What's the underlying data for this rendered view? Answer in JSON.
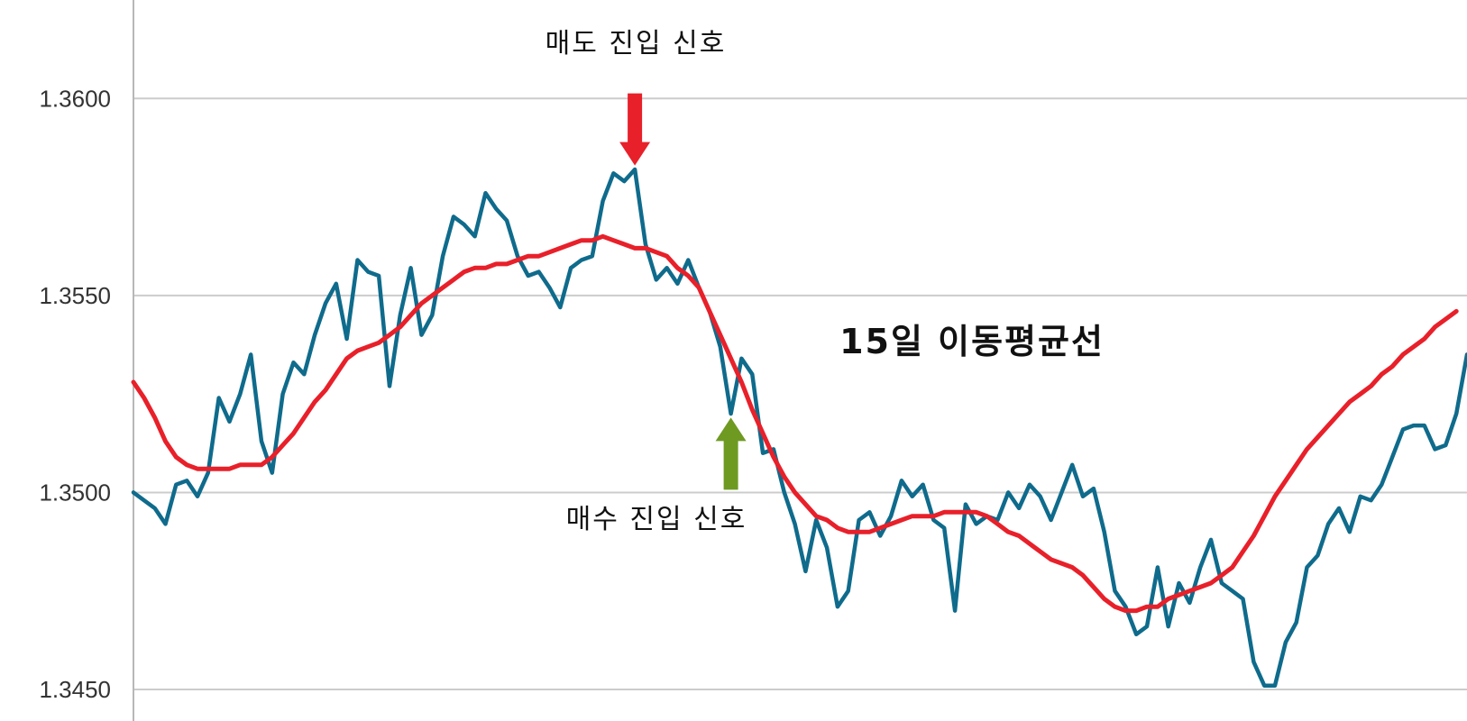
{
  "chart_data": {
    "type": "line",
    "title": "",
    "xlabel": "",
    "ylabel": "",
    "ylim": [
      1.3442,
      1.3625
    ],
    "yticks": [
      1.36,
      1.355,
      1.35,
      1.345
    ],
    "ytick_labels": [
      "1.3600",
      "1.3550",
      "1.3500",
      "1.3450"
    ],
    "grid": true,
    "series": [
      {
        "key": "price",
        "color": "#0f6b8c",
        "values": [
          1.35,
          1.3498,
          1.3496,
          1.3492,
          1.3502,
          1.3503,
          1.3499,
          1.3505,
          1.3524,
          1.3518,
          1.3525,
          1.3535,
          1.3513,
          1.3505,
          1.3525,
          1.3533,
          1.353,
          1.354,
          1.3548,
          1.3553,
          1.3539,
          1.3559,
          1.3556,
          1.3555,
          1.3527,
          1.3545,
          1.3557,
          1.354,
          1.3545,
          1.356,
          1.357,
          1.3568,
          1.3565,
          1.3576,
          1.3572,
          1.3569,
          1.356,
          1.3555,
          1.3556,
          1.3552,
          1.3547,
          1.3557,
          1.3559,
          1.356,
          1.3574,
          1.3581,
          1.3579,
          1.3582,
          1.3563,
          1.3554,
          1.3557,
          1.3553,
          1.3559,
          1.3552,
          1.3546,
          1.3537,
          1.352,
          1.3534,
          1.353,
          1.351,
          1.3511,
          1.35,
          1.3492,
          1.348,
          1.3493,
          1.3486,
          1.3471,
          1.3475,
          1.3493,
          1.3495,
          1.3489,
          1.3494,
          1.3503,
          1.3499,
          1.3502,
          1.3493,
          1.3491,
          1.347,
          1.3497,
          1.3492,
          1.3494,
          1.3493,
          1.35,
          1.3496,
          1.3502,
          1.3499,
          1.3493,
          1.35,
          1.3507,
          1.3499,
          1.3501,
          1.349,
          1.3475,
          1.3471,
          1.3464,
          1.3466,
          1.3481,
          1.3466,
          1.3477,
          1.3472,
          1.3481,
          1.3488,
          1.3477,
          1.3475,
          1.3473,
          1.3457,
          1.3451,
          1.3451,
          1.3462,
          1.3467,
          1.3481,
          1.3484,
          1.3492,
          1.3496,
          1.349,
          1.3499,
          1.3498,
          1.3502,
          1.3509,
          1.3516,
          1.3517,
          1.3517,
          1.3511,
          1.3512,
          1.352,
          1.3535
        ]
      },
      {
        "key": "ma15",
        "name": "15일 이동평균선",
        "color": "#e8202a",
        "values": [
          1.3528,
          1.3524,
          1.3519,
          1.3513,
          1.3509,
          1.3507,
          1.3506,
          1.3506,
          1.3506,
          1.3506,
          1.3507,
          1.3507,
          1.3507,
          1.3509,
          1.3512,
          1.3515,
          1.3519,
          1.3523,
          1.3526,
          1.353,
          1.3534,
          1.3536,
          1.3537,
          1.3538,
          1.354,
          1.3542,
          1.3545,
          1.3548,
          1.355,
          1.3552,
          1.3554,
          1.3556,
          1.3557,
          1.3557,
          1.3558,
          1.3558,
          1.3559,
          1.356,
          1.356,
          1.3561,
          1.3562,
          1.3563,
          1.3564,
          1.3564,
          1.3565,
          1.3564,
          1.3563,
          1.3562,
          1.3562,
          1.3561,
          1.356,
          1.3557,
          1.3555,
          1.3552,
          1.3546,
          1.354,
          1.3534,
          1.3528,
          1.3521,
          1.3515,
          1.3509,
          1.3504,
          1.35,
          1.3497,
          1.3494,
          1.3493,
          1.3491,
          1.349,
          1.349,
          1.349,
          1.3491,
          1.3492,
          1.3493,
          1.3494,
          1.3494,
          1.3494,
          1.3495,
          1.3495,
          1.3495,
          1.3495,
          1.3494,
          1.3492,
          1.349,
          1.3489,
          1.3487,
          1.3485,
          1.3483,
          1.3482,
          1.3481,
          1.3479,
          1.3476,
          1.3473,
          1.3471,
          1.347,
          1.347,
          1.3471,
          1.3471,
          1.3473,
          1.3474,
          1.3475,
          1.3476,
          1.3477,
          1.3479,
          1.3481,
          1.3485,
          1.3489,
          1.3494,
          1.3499,
          1.3503,
          1.3507,
          1.3511,
          1.3514,
          1.3517,
          1.352,
          1.3523,
          1.3525,
          1.3527,
          1.353,
          1.3532,
          1.3535,
          1.3537,
          1.3539,
          1.3542,
          1.3544,
          1.3546
        ]
      }
    ],
    "annotations": [
      {
        "key": "sell",
        "text": "매도 진입 신호",
        "index": 47,
        "value": 1.3583,
        "arrow_color": "#e8202a",
        "direction": "down"
      },
      {
        "key": "buy",
        "text": "매수 진입 신호",
        "index": 56,
        "value": 1.3519,
        "arrow_color": "#6e9a22",
        "direction": "up"
      }
    ],
    "series_label": "15일 이동평균선"
  }
}
